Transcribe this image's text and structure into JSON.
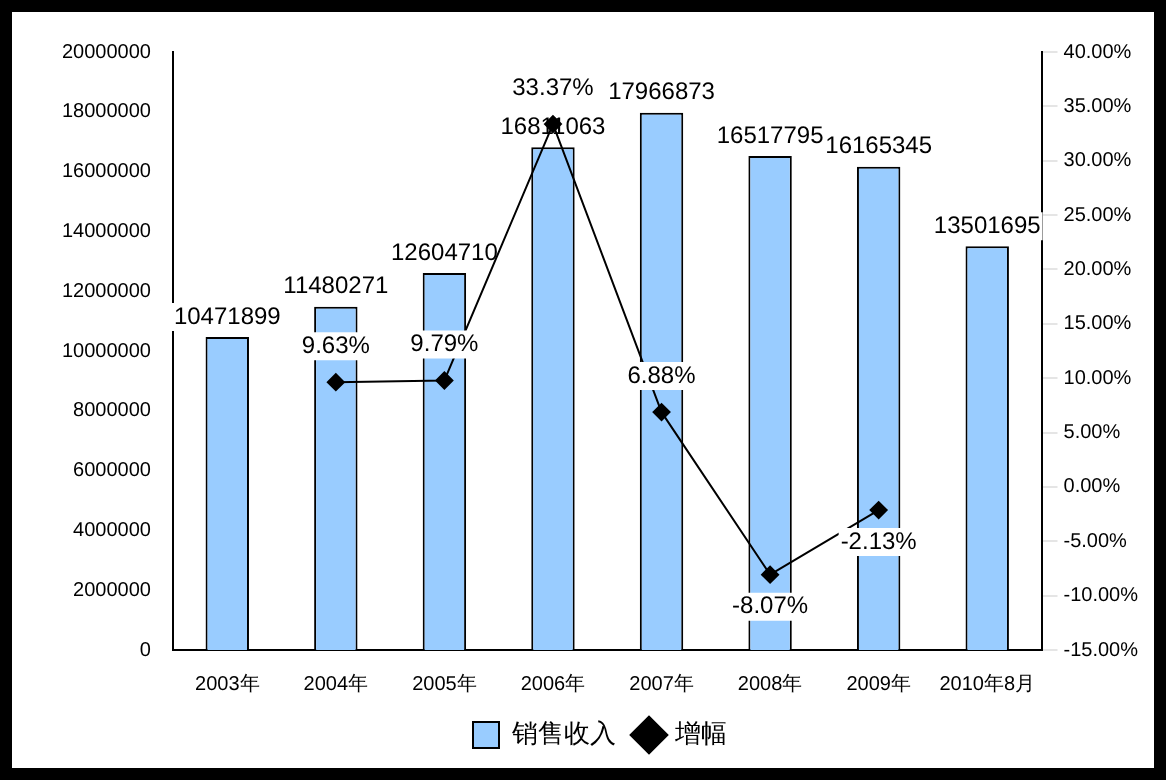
{
  "chart_data": {
    "type": "bar",
    "categories": [
      "2003年",
      "2004年",
      "2005年",
      "2006年",
      "2007年",
      "2008年",
      "2009年",
      "2010年8月"
    ],
    "series": [
      {
        "name": "销售收入",
        "color": "#99ccff",
        "values": [
          10471899,
          11480271,
          12604710,
          16811063,
          17966873,
          16517795,
          16165345,
          13501695
        ],
        "value_labels": [
          "10471899",
          "11480271",
          "12604710",
          "16811063",
          "17966873",
          "16517795",
          "16165345",
          "13501695"
        ]
      },
      {
        "name": "增幅",
        "type": "line",
        "axis": "y2",
        "color": "#000000",
        "marker": "diamond",
        "values": [
          null,
          9.63,
          9.79,
          33.37,
          6.88,
          -8.07,
          -2.13,
          null
        ],
        "value_labels": [
          null,
          "9.63%",
          "9.79%",
          "33.37%",
          "6.88%",
          "-8.07%",
          "-2.13%",
          null
        ]
      }
    ],
    "ylim": [
      0,
      20000000
    ],
    "yticks": [
      0,
      2000000,
      4000000,
      6000000,
      8000000,
      10000000,
      12000000,
      14000000,
      16000000,
      18000000,
      20000000
    ],
    "y2lim": [
      -15,
      40
    ],
    "y2ticks": [
      {
        "value": -15,
        "label": "-15.00%"
      },
      {
        "value": -10,
        "label": "-10.00%"
      },
      {
        "value": -5,
        "label": "-5.00%"
      },
      {
        "value": 0,
        "label": "0.00%"
      },
      {
        "value": 5,
        "label": "5.00%"
      },
      {
        "value": 10,
        "label": "10.00%"
      },
      {
        "value": 15,
        "label": "15.00%"
      },
      {
        "value": 20,
        "label": "20.00%"
      },
      {
        "value": 25,
        "label": "25.00%"
      },
      {
        "value": 30,
        "label": "30.00%"
      },
      {
        "value": 35,
        "label": "35.00%"
      },
      {
        "value": 40,
        "label": "40.00%"
      }
    ],
    "grid": false,
    "legend": "bottom"
  }
}
